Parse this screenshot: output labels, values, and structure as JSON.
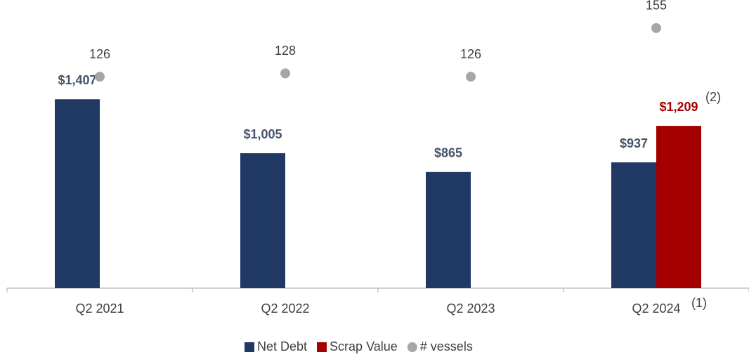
{
  "chart_data": {
    "type": "bar",
    "categories": [
      "Q2 2021",
      "Q2 2022",
      "Q2 2023",
      "Q2 2024"
    ],
    "series": [
      {
        "name": "Net Debt",
        "color": "#203864",
        "label_color": "#44546a",
        "values": [
          1407,
          1005,
          865,
          937
        ],
        "value_labels": [
          "$1,407",
          "$1,005",
          "$865",
          "$937"
        ]
      },
      {
        "name": "Scrap Value",
        "color": "#a50000",
        "label_color": "#a50000",
        "values": [
          null,
          null,
          null,
          1209
        ],
        "value_labels": [
          null,
          null,
          null,
          "$1,209"
        ]
      },
      {
        "name": "# vessels",
        "type": "scatter",
        "axis": "y2",
        "color": "#a6a6a6",
        "values": [
          126,
          128,
          126,
          155
        ]
      }
    ],
    "annotations": [
      "(1)",
      "(2)"
    ],
    "ylim": [
      0,
      2000
    ],
    "y2lim": [
      0,
      160
    ],
    "grid": false
  }
}
